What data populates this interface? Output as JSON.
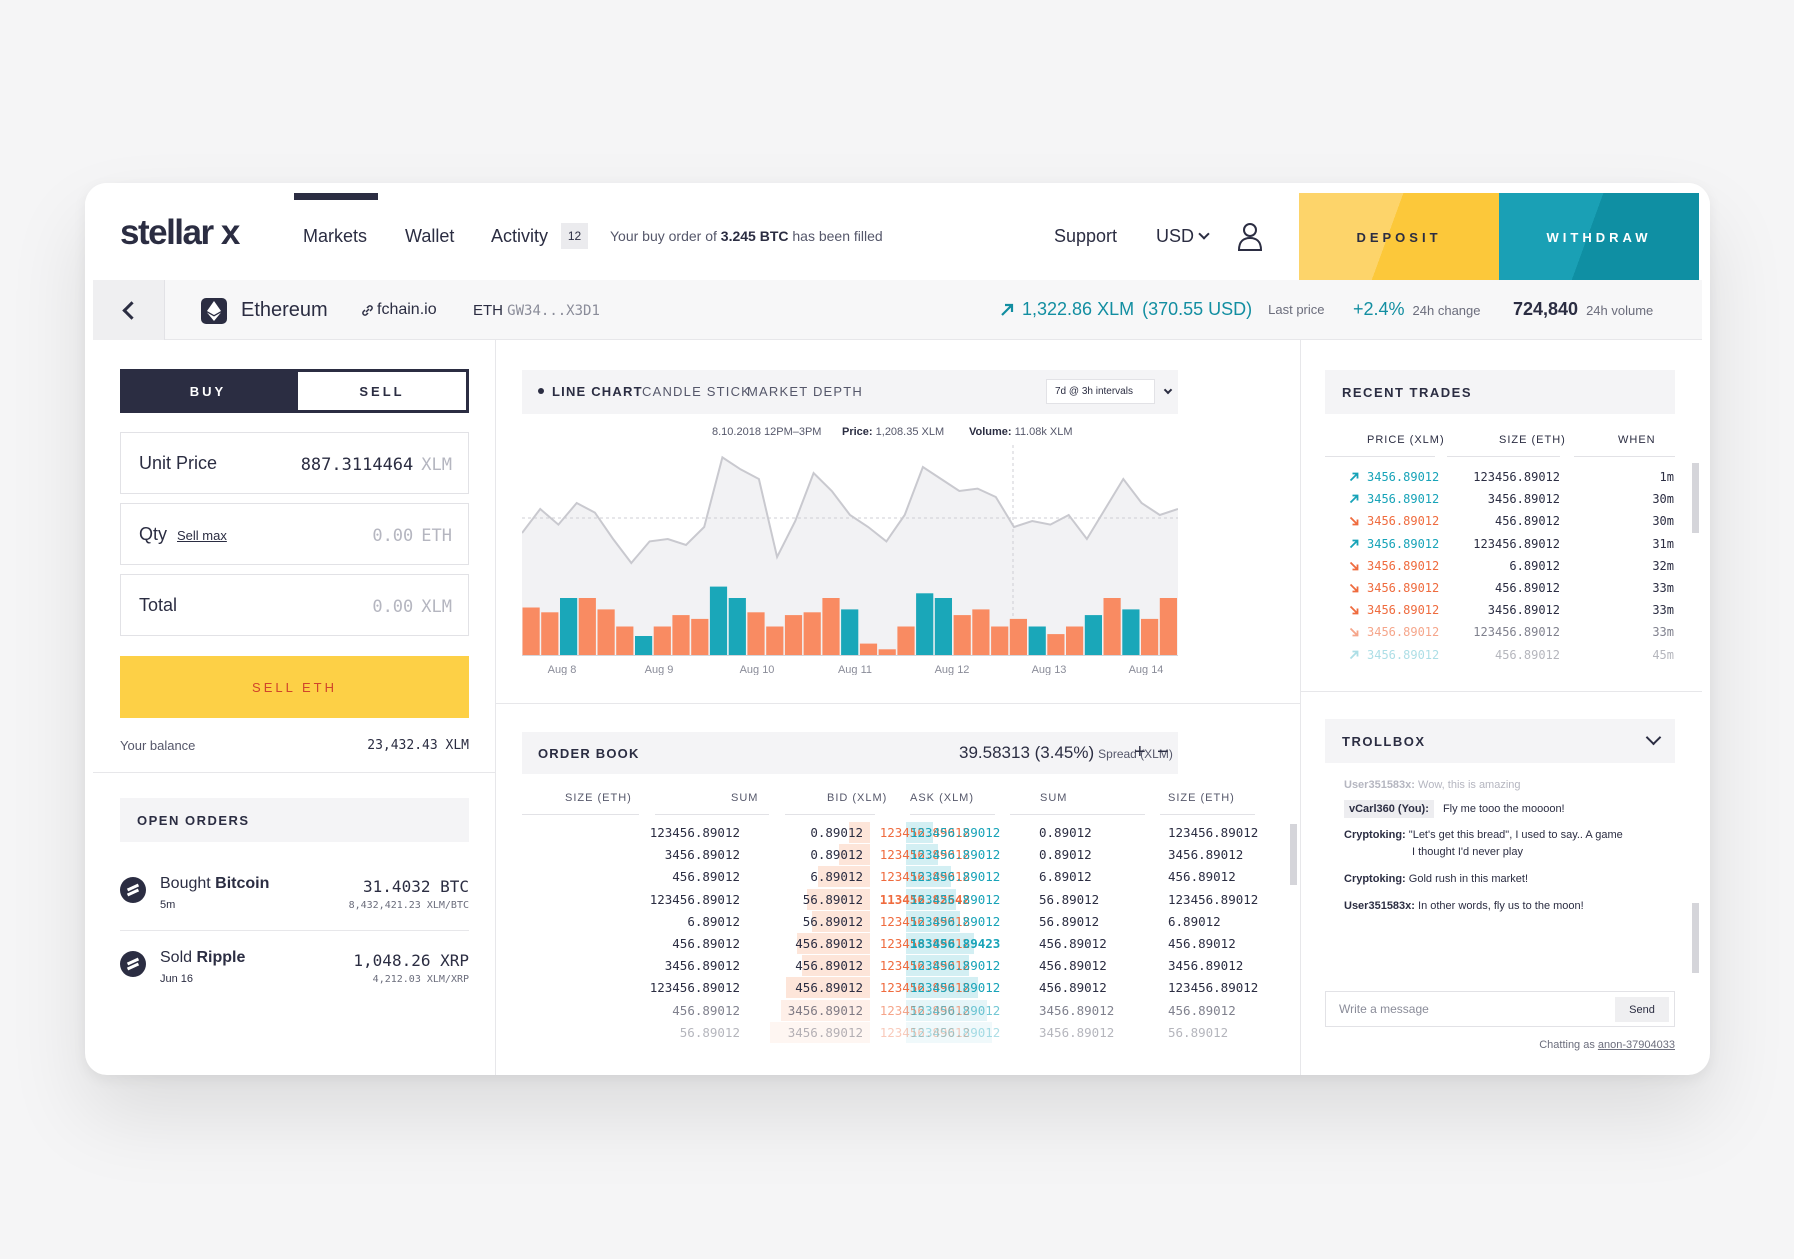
{
  "header": {
    "logo": "stellar x",
    "nav": [
      "Markets",
      "Wallet",
      "Activity"
    ],
    "activity_count": "12",
    "notification_pre": "Your buy order of ",
    "notification_amount": "3.245 BTC",
    "notification_post": " has been filled",
    "support": "Support",
    "currency": "USD",
    "deposit": "DEPOSIT",
    "withdraw": "WITHDRAW"
  },
  "asset": {
    "name": "Ethereum",
    "domain": "fchain.io",
    "code": "ETH",
    "issuer": "GW34...X3D1",
    "last_price": "1,322.86 XLM",
    "last_price_usd": "(370.55 USD)",
    "last_price_label": "Last price",
    "change": "+2.4%",
    "change_label": "24h change",
    "volume": "724,840",
    "volume_label": "24h volume"
  },
  "trade": {
    "buy_tab": "BUY",
    "sell_tab": "SELL",
    "unit_price_label": "Unit Price",
    "unit_price_value": "887.3114464",
    "unit_price_unit": "XLM",
    "qty_label": "Qty",
    "sell_max": "Sell max",
    "qty_value": "0.00",
    "qty_unit": "ETH",
    "total_label": "Total",
    "total_value": "0.00",
    "total_unit": "XLM",
    "cta": "SELL ETH",
    "balance_label": "Your balance",
    "balance_value": "23,432.43 XLM"
  },
  "open_orders": {
    "title": "OPEN ORDERS",
    "items": [
      {
        "action": "Bought",
        "asset": "Bitcoin",
        "time": "5m",
        "amount": "31.4032 BTC",
        "rate": "8,432,421.23 XLM/BTC"
      },
      {
        "action": "Sold",
        "asset": "Ripple",
        "time": "Jun 16",
        "amount": "1,048.26 XRP",
        "rate": "4,212.03 XLM/XRP"
      }
    ]
  },
  "chart": {
    "tabs": [
      "LINE CHART",
      "CANDLE STICK",
      "MARKET DEPTH"
    ],
    "interval": "7d @ 3h intervals",
    "tooltip_date": "8.10.2018 12PM–3PM",
    "tooltip_price_label": "Price:",
    "tooltip_price": "1,208.35 XLM",
    "tooltip_volume_label": "Volume:",
    "tooltip_volume": "11.08k XLM"
  },
  "chart_data": {
    "type": "line",
    "title": "",
    "x_ticks": [
      "Aug 8",
      "Aug 9",
      "Aug 10",
      "Aug 11",
      "Aug 12",
      "Aug 13",
      "Aug 14"
    ],
    "price_series": [
      0.35,
      0.55,
      0.42,
      0.6,
      0.52,
      0.3,
      0.1,
      0.28,
      0.3,
      0.25,
      0.4,
      0.98,
      0.88,
      0.8,
      0.15,
      0.45,
      0.85,
      0.7,
      0.5,
      0.4,
      0.28,
      0.5,
      0.9,
      0.8,
      0.7,
      0.72,
      0.65,
      0.4,
      0.45,
      0.42,
      0.5,
      0.3,
      0.55,
      0.8,
      0.6,
      0.5,
      0.55
    ],
    "volume_bars": [
      0.5,
      0.45,
      0.6,
      0.6,
      0.48,
      0.3,
      0.2,
      0.3,
      0.42,
      0.38,
      0.72,
      0.6,
      0.45,
      0.3,
      0.42,
      0.45,
      0.6,
      0.48,
      0.12,
      0.06,
      0.3,
      0.65,
      0.6,
      0.42,
      0.48,
      0.3,
      0.38,
      0.3,
      0.22,
      0.3,
      0.42,
      0.6,
      0.48,
      0.38,
      0.6
    ],
    "volume_colors": [
      "o",
      "o",
      "t",
      "o",
      "o",
      "o",
      "t",
      "o",
      "o",
      "o",
      "t",
      "t",
      "o",
      "o",
      "o",
      "o",
      "o",
      "t",
      "o",
      "o",
      "o",
      "t",
      "t",
      "o",
      "o",
      "o",
      "o",
      "t",
      "o",
      "o",
      "t",
      "o",
      "t",
      "o",
      "o"
    ],
    "colors": {
      "up": "#1aa7b9",
      "down": "#f98b62",
      "line": "#c9c9cf"
    }
  },
  "order_book": {
    "title": "ORDER BOOK",
    "spread": "39.58313 (3.45%)",
    "spread_label": "Spread (XLM)",
    "columns": [
      "SIZE (ETH)",
      "SUM",
      "BID (XLM)",
      "ASK (XLM)",
      "SUM",
      "SIZE (ETH)"
    ],
    "rows": [
      [
        "123456.89012",
        "0.89012",
        "123456.89012",
        "123456.89012",
        "0.89012",
        "123456.89012"
      ],
      [
        "3456.89012",
        "0.89012",
        "123456.89012",
        "123456.89012",
        "0.89012",
        "3456.89012"
      ],
      [
        "456.89012",
        "6.89012",
        "123456.89012",
        "123456.89012",
        "6.89012",
        "456.89012"
      ],
      [
        "123456.89012",
        "56.89012",
        "113456.82542",
        "123456.89012",
        "56.89012",
        "123456.89012"
      ],
      [
        "6.89012",
        "56.89012",
        "123456.89012",
        "123456.89012",
        "56.89012",
        "6.89012"
      ],
      [
        "456.89012",
        "456.89012",
        "123456.89012",
        "183456.89423",
        "456.89012",
        "456.89012"
      ],
      [
        "3456.89012",
        "456.89012",
        "123456.89012",
        "123456.89012",
        "456.89012",
        "3456.89012"
      ],
      [
        "123456.89012",
        "456.89012",
        "123456.89012",
        "123456.89012",
        "456.89012",
        "123456.89012"
      ],
      [
        "456.89012",
        "3456.89012",
        "123456.89012",
        "123456.89012",
        "3456.89012",
        "456.89012"
      ],
      [
        "56.89012",
        "3456.89012",
        "123456.89012",
        "123456.89012",
        "3456.89012",
        "56.89012"
      ]
    ]
  },
  "recent_trades": {
    "title": "RECENT TRADES",
    "columns": [
      "PRICE (XLM)",
      "SIZE (ETH)",
      "WHEN"
    ],
    "rows": [
      {
        "dir": "up",
        "price": "3456.89012",
        "size": "123456.89012",
        "when": "1m"
      },
      {
        "dir": "up",
        "price": "3456.89012",
        "size": "3456.89012",
        "when": "30m"
      },
      {
        "dir": "down",
        "price": "3456.89012",
        "size": "456.89012",
        "when": "30m"
      },
      {
        "dir": "up",
        "price": "3456.89012",
        "size": "123456.89012",
        "when": "31m"
      },
      {
        "dir": "down",
        "price": "3456.89012",
        "size": "6.89012",
        "when": "32m"
      },
      {
        "dir": "down",
        "price": "3456.89012",
        "size": "456.89012",
        "when": "33m"
      },
      {
        "dir": "down",
        "price": "3456.89012",
        "size": "3456.89012",
        "when": "33m"
      },
      {
        "dir": "down",
        "price": "3456.89012",
        "size": "123456.89012",
        "when": "33m"
      },
      {
        "dir": "up",
        "price": "3456.89012",
        "size": "456.89012",
        "when": "45m"
      }
    ]
  },
  "trollbox": {
    "title": "TROLLBOX",
    "messages": [
      {
        "user": "User351583x:",
        "text": "Wow, this is amazing"
      },
      {
        "user": "vCarl360 (You):",
        "text": "Fly me tooo the moooon!"
      },
      {
        "user": "Cryptoking:",
        "text": "\"Let's get this bread\", I used to say.. A game",
        "text2": "I thought I'd never play"
      },
      {
        "user": "Cryptoking:",
        "text": "Gold rush in this market!"
      },
      {
        "user": "User351583x:",
        "text": "In other words, fly us to the moon!"
      }
    ],
    "placeholder": "Write a message",
    "send": "Send",
    "chatting_as_label": "Chatting as",
    "chatting_as_user": "anon-37904033"
  }
}
